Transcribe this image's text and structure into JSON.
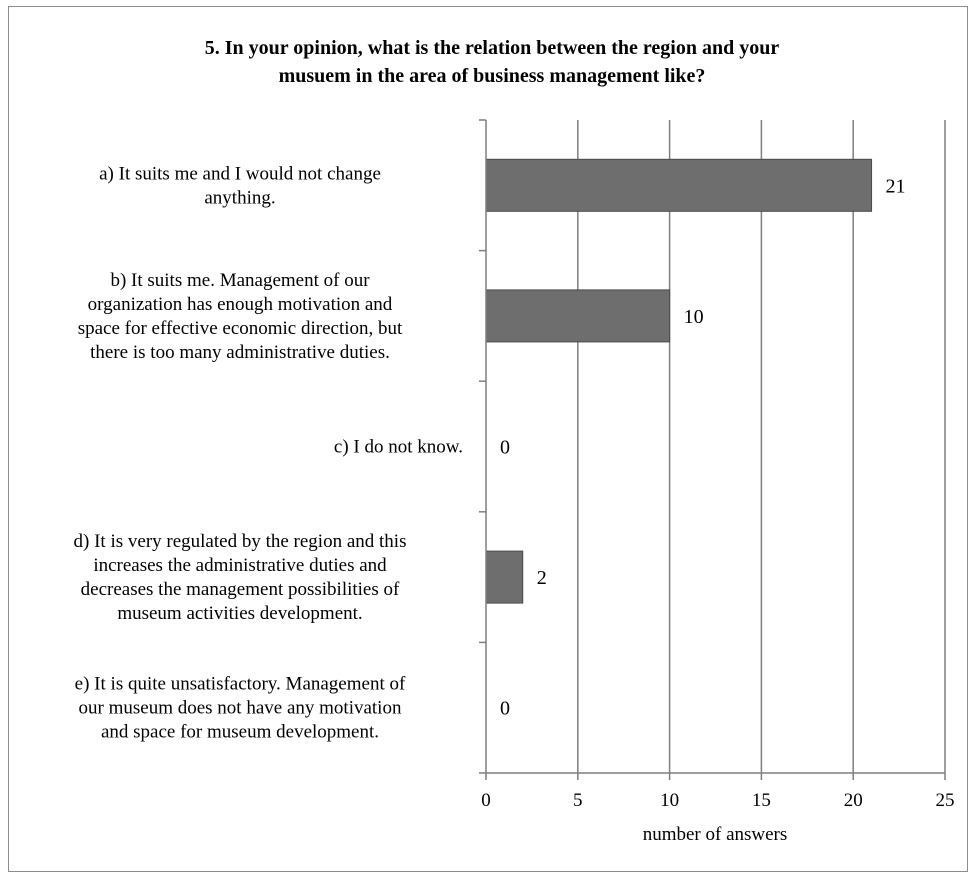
{
  "chart_data": {
    "type": "bar",
    "orientation": "horizontal",
    "title_lines": [
      "5. In your opinion, what is the relation between the region and your",
      "musuem in the area of business management like?"
    ],
    "categories": [
      {
        "lines": [
          "a) It suits me and I would not change",
          "anything."
        ]
      },
      {
        "lines": [
          "b) It suits me. Management of our",
          "organization has enough motivation and",
          "space for effective economic direction, but",
          "there is too many administrative duties."
        ]
      },
      {
        "lines": [
          "c) I do not know."
        ]
      },
      {
        "lines": [
          "d) It is very regulated by the region and this",
          "increases the administrative duties and",
          "decreases the management possibilities of",
          "museum activities development."
        ]
      },
      {
        "lines": [
          "e) It is quite unsatisfactory. Management of",
          "our museum does not have any motivation",
          "and space for museum development."
        ]
      }
    ],
    "values": [
      21,
      10,
      0,
      2,
      0
    ],
    "xlabel": "number of answers",
    "xlim": [
      0,
      25
    ],
    "xticks": [
      0,
      5,
      10,
      15,
      20,
      25
    ],
    "grid": "vertical",
    "legend": "none",
    "bar_color": "#6e6e6e",
    "grid_color": "#7f7f7f"
  }
}
